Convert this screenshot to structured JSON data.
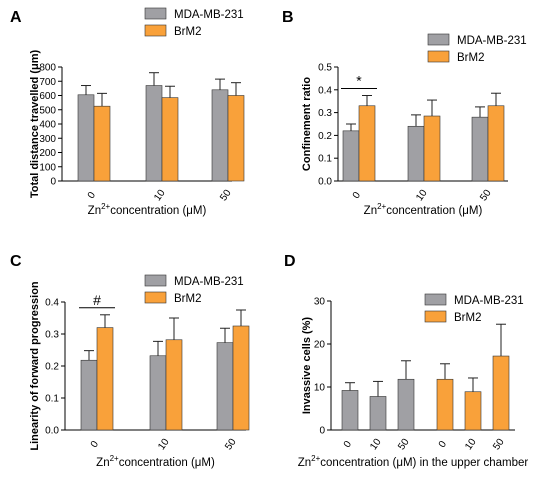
{
  "colors": {
    "series1": "#a0a0a4",
    "series2": "#f9a13a",
    "axis": "#000000"
  },
  "chart_data": [
    {
      "panel": "A",
      "type": "bar",
      "categories": [
        "0",
        "10",
        "50"
      ],
      "series": [
        {
          "name": "MDA-MB-231",
          "values": [
            605,
            670,
            640
          ],
          "errors": [
            65,
            90,
            75
          ]
        },
        {
          "name": "BrM2",
          "values": [
            525,
            585,
            600
          ],
          "errors": [
            90,
            80,
            90
          ]
        }
      ],
      "ylim": [
        0,
        800
      ],
      "yticks": [
        "0",
        "100",
        "200",
        "300",
        "400",
        "500",
        "600",
        "700",
        "800"
      ],
      "ylabel": "Total distance travelled (μm)",
      "xlabel_pre": "Zn",
      "xlabel_sup": "2+",
      "xlabel_post": "concentration (μM)",
      "legend": "top-right",
      "annotations": []
    },
    {
      "panel": "B",
      "type": "bar",
      "categories": [
        "0",
        "10",
        "50"
      ],
      "series": [
        {
          "name": "MDA-MB-231",
          "values": [
            0.22,
            0.24,
            0.28
          ],
          "errors": [
            0.03,
            0.05,
            0.045
          ]
        },
        {
          "name": "BrM2",
          "values": [
            0.33,
            0.285,
            0.33
          ],
          "errors": [
            0.045,
            0.07,
            0.055
          ]
        }
      ],
      "ylim": [
        0,
        0.5
      ],
      "yticks": [
        "0.0",
        "0.1",
        "0.2",
        "0.3",
        "0.4",
        "0.5"
      ],
      "ylabel": "Confinement ratio",
      "xlabel_pre": "Zn",
      "xlabel_sup": "2+",
      "xlabel_post": "concentration (μM)",
      "legend": "top-right",
      "annotations": [
        {
          "text": "*",
          "category": 0
        }
      ]
    },
    {
      "panel": "C",
      "type": "bar",
      "categories": [
        "0",
        "10",
        "50"
      ],
      "series": [
        {
          "name": "MDA-MB-231",
          "values": [
            0.218,
            0.232,
            0.273
          ],
          "errors": [
            0.03,
            0.045,
            0.045
          ]
        },
        {
          "name": "BrM2",
          "values": [
            0.32,
            0.282,
            0.325
          ],
          "errors": [
            0.04,
            0.068,
            0.05
          ]
        }
      ],
      "ylim": [
        0,
        0.4
      ],
      "yticks": [
        "0.0",
        "0.1",
        "0.2",
        "0.3",
        "0.4"
      ],
      "ylabel": "Linearity of forward progression",
      "xlabel_pre": "Zn",
      "xlabel_sup": "2+",
      "xlabel_post": "concentration (μM)",
      "legend": "top-right",
      "annotations": [
        {
          "text": "#",
          "category": 0
        }
      ]
    },
    {
      "panel": "D",
      "type": "bar",
      "categories": [
        "0",
        "10",
        "50",
        "0",
        "10",
        "50"
      ],
      "series": [
        {
          "name": "MDA-MB-231",
          "values": [
            9.2,
            7.8,
            11.8,
            null,
            null,
            null
          ],
          "errors": [
            1.8,
            3.5,
            4.3,
            null,
            null,
            null
          ]
        },
        {
          "name": "BrM2",
          "values": [
            null,
            null,
            null,
            11.8,
            8.9,
            17.2
          ],
          "errors": [
            null,
            null,
            null,
            3.6,
            3.2,
            7.4
          ]
        }
      ],
      "ylim": [
        0,
        30
      ],
      "yticks": [
        "0",
        "10",
        "20",
        "30"
      ],
      "ylabel": "Invassive cells (%)",
      "xlabel_pre": "Zn",
      "xlabel_sup": "2+",
      "xlabel_post": "concentration (μM) in the upper chamber",
      "legend": "top-right",
      "annotations": []
    }
  ]
}
